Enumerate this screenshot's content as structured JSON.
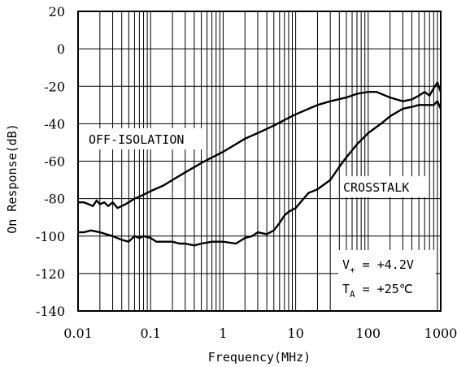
{
  "chart_data": {
    "type": "line",
    "xscale": "log",
    "xlabel": "Frequency(MHz)",
    "ylabel": "On Response(dB)",
    "xlim": [
      0.01,
      1000
    ],
    "ylim": [
      -140,
      20
    ],
    "grid": true,
    "x_ticks": [
      {
        "value": 0.01,
        "label": "0.01"
      },
      {
        "value": 0.1,
        "label": "0.1"
      },
      {
        "value": 1,
        "label": "1"
      },
      {
        "value": 10,
        "label": "10"
      },
      {
        "value": 100,
        "label": "100"
      },
      {
        "value": 1000,
        "label": "1000"
      }
    ],
    "y_ticks": [
      {
        "value": 20,
        "label": "20"
      },
      {
        "value": 0,
        "label": "0"
      },
      {
        "value": -20,
        "label": "-20"
      },
      {
        "value": -40,
        "label": "-40"
      },
      {
        "value": -60,
        "label": "-60"
      },
      {
        "value": -80,
        "label": "-80"
      },
      {
        "value": -100,
        "label": "-100"
      },
      {
        "value": -120,
        "label": "-120"
      },
      {
        "value": -140,
        "label": "-140"
      }
    ],
    "series": [
      {
        "name": "OFF-ISOLATION",
        "x": [
          0.01,
          0.012,
          0.014,
          0.016,
          0.018,
          0.02,
          0.023,
          0.026,
          0.03,
          0.035,
          0.04,
          0.045,
          0.05,
          0.06,
          0.07,
          0.1,
          0.15,
          0.2,
          0.3,
          0.5,
          0.7,
          1,
          2,
          3,
          5,
          7,
          10,
          20,
          30,
          50,
          70,
          100,
          130,
          150,
          200,
          300,
          400,
          500,
          600,
          700,
          800,
          900,
          1000
        ],
        "y": [
          -82,
          -82,
          -83,
          -84,
          -81,
          -83,
          -82,
          -84,
          -82,
          -85,
          -84,
          -83,
          -82,
          -80,
          -79,
          -76,
          -73,
          -70,
          -66,
          -61,
          -58,
          -55,
          -48,
          -45,
          -41,
          -38,
          -35,
          -30,
          -28,
          -26,
          -24,
          -23,
          -23,
          -24,
          -26,
          -28,
          -27,
          -25,
          -23,
          -25,
          -21,
          -18,
          -23
        ]
      },
      {
        "name": "CROSSTALK",
        "x": [
          0.01,
          0.012,
          0.015,
          0.02,
          0.03,
          0.04,
          0.05,
          0.06,
          0.07,
          0.08,
          0.1,
          0.12,
          0.15,
          0.2,
          0.25,
          0.3,
          0.4,
          0.5,
          0.7,
          1,
          1.5,
          2,
          2.5,
          3,
          4,
          5,
          6,
          7,
          8,
          10,
          15,
          20,
          30,
          40,
          50,
          70,
          100,
          150,
          200,
          300,
          400,
          500,
          600,
          700,
          800,
          900,
          1000
        ],
        "y": [
          -98,
          -98,
          -97,
          -98,
          -100,
          -102,
          -103,
          -100,
          -101,
          -100,
          -101,
          -103,
          -103,
          -103,
          -104,
          -104,
          -105,
          -104,
          -103,
          -103,
          -104,
          -101,
          -100,
          -98,
          -99,
          -97,
          -93,
          -89,
          -87,
          -85,
          -77,
          -75,
          -70,
          -63,
          -58,
          -51,
          -45,
          -40,
          -36,
          -32,
          -31,
          -30,
          -30,
          -30,
          -30,
          -28,
          -32
        ]
      }
    ],
    "annotations": [
      {
        "text": "OFF-ISOLATION"
      },
      {
        "text": "CROSSTALK"
      },
      {
        "text_main": "V",
        "sub": "+",
        "rest": " = +4.2V"
      },
      {
        "text_main": "T",
        "sub": "A",
        "rest": " = +25℃"
      }
    ]
  }
}
